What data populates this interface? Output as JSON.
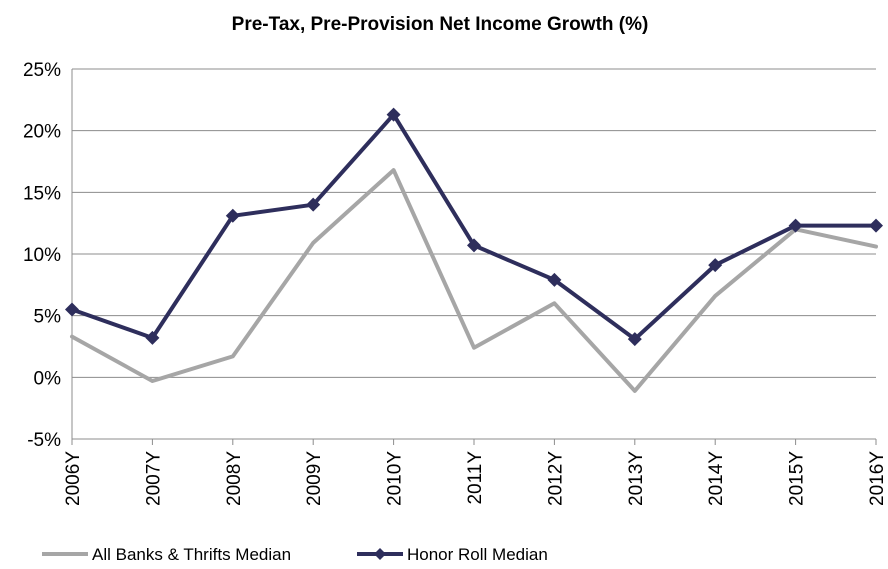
{
  "chart_data": {
    "type": "line",
    "title": "Pre-Tax, Pre-Provision Net Income Growth (%)",
    "xlabel": "",
    "ylabel": "",
    "ylim": [
      -5,
      25
    ],
    "ytick_values": [
      -5,
      0,
      5,
      10,
      15,
      20,
      25
    ],
    "ytick_labels": [
      "-5%",
      "0%",
      "5%",
      "10%",
      "15%",
      "20%",
      "25%"
    ],
    "categories": [
      "2006Y",
      "2007Y",
      "2008Y",
      "2009Y",
      "2010Y",
      "2011Y",
      "2012Y",
      "2013Y",
      "2014Y",
      "2015Y",
      "2016Y"
    ],
    "grid": true,
    "legend_position": "bottom",
    "series": [
      {
        "name": "All Banks & Thrifts Median",
        "color": "#a6a6a6",
        "marker": "none",
        "values": [
          3.3,
          -0.3,
          1.7,
          10.9,
          16.8,
          2.4,
          6.0,
          -1.1,
          6.6,
          12.0,
          10.6
        ]
      },
      {
        "name": "Honor Roll Median",
        "color": "#2e2e5c",
        "marker": "diamond",
        "values": [
          5.5,
          3.2,
          13.1,
          14.0,
          21.3,
          10.7,
          7.9,
          3.1,
          9.1,
          12.3,
          12.3
        ]
      }
    ]
  }
}
